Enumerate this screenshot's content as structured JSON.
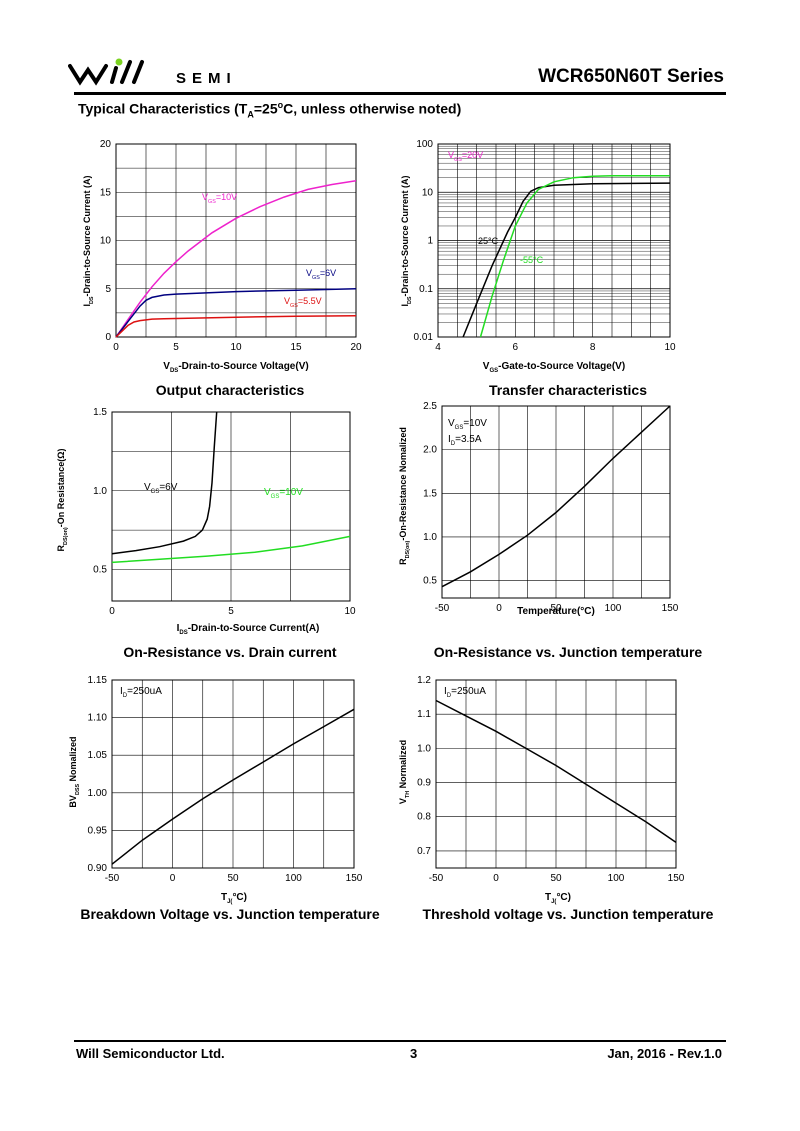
{
  "header": {
    "brand": "SEMI",
    "series_title": "WCR650N60T  Series",
    "section_title": "Typical Characteristics (T",
    "section_sub": "A",
    "section_rest": "=25",
    "section_sup": "o",
    "section_tail": "C, unless otherwise noted)"
  },
  "footer": {
    "company": "Will Semiconductor Ltd.",
    "page": "3",
    "date_rev": "Jan, 2016 - Rev.1.0"
  },
  "colors": {
    "magenta": "#ee22cc",
    "blue": "#000080",
    "red": "#dd1111",
    "green": "#22dd22",
    "black": "#000000"
  },
  "chart_data": [
    {
      "id": "output",
      "type": "line",
      "caption": "Output characteristics",
      "xlabel": "V_DS-Drain-to-Source Voltage(V)",
      "ylabel": "I_DS-Drain-to-Source Current (A)",
      "xlim": [
        0,
        20
      ],
      "ylim": [
        0,
        20
      ],
      "xticks": [
        0,
        5,
        10,
        15,
        20
      ],
      "yticks": [
        0,
        5,
        10,
        15,
        20
      ],
      "series": [
        {
          "name": "V_GS=10V",
          "color": "#ee22cc",
          "x": [
            0,
            1,
            2,
            3,
            4,
            5,
            6,
            8,
            10,
            12,
            14,
            16,
            18,
            20
          ],
          "y": [
            0,
            1.8,
            3.6,
            5.2,
            6.6,
            7.8,
            8.9,
            10.8,
            12.3,
            13.5,
            14.5,
            15.3,
            15.8,
            16.2
          ]
        },
        {
          "name": "V_GS=6V",
          "color": "#000080",
          "x": [
            0,
            1,
            2,
            2.5,
            3,
            4,
            5,
            7,
            10,
            15,
            20
          ],
          "y": [
            0,
            1.6,
            3.2,
            3.8,
            4.1,
            4.35,
            4.45,
            4.55,
            4.7,
            4.85,
            5.0
          ]
        },
        {
          "name": "V_GS=5.5V",
          "color": "#dd1111",
          "x": [
            0,
            0.5,
            1,
            1.5,
            2,
            3,
            4,
            6,
            10,
            15,
            20
          ],
          "y": [
            0,
            0.6,
            1.2,
            1.55,
            1.7,
            1.85,
            1.9,
            1.95,
            2.05,
            2.15,
            2.2
          ]
        }
      ]
    },
    {
      "id": "transfer",
      "type": "line",
      "caption": "Transfer characteristics",
      "xlabel": "V_GS-Gate-to-Source Voltage(V)",
      "ylabel": "I_DS-Drain-to-Source Current (A)",
      "xlim": [
        4,
        10
      ],
      "ylim": [
        0.01,
        100
      ],
      "yscale": "log",
      "xticks": [
        4,
        6,
        8,
        10
      ],
      "yticks": [
        0.01,
        0.1,
        1,
        10,
        100
      ],
      "annotation": "V_GS=20V",
      "series": [
        {
          "name": "25°C",
          "color": "#000000",
          "x": [
            4.65,
            5.0,
            5.4,
            5.8,
            6.0,
            6.2,
            6.4,
            6.6,
            7.0,
            8.0,
            10.0
          ],
          "y": [
            0.01,
            0.05,
            0.3,
            1.5,
            3.0,
            6.5,
            10.5,
            12.5,
            14,
            15,
            15.5
          ]
        },
        {
          "name": "-55°C",
          "color": "#22dd22",
          "x": [
            5.1,
            5.4,
            5.7,
            6.0,
            6.3,
            6.6,
            7.0,
            7.5,
            8.0,
            8.5,
            10.0
          ],
          "y": [
            0.01,
            0.07,
            0.4,
            2.0,
            6.0,
            11.5,
            16.5,
            20,
            21.5,
            22,
            22
          ]
        }
      ]
    },
    {
      "id": "ron-id",
      "type": "line",
      "caption": "On-Resistance vs. Drain current",
      "xlabel": "I_DS-Drain-to-Source Current(A)",
      "ylabel": "R_DS(on)-On Resistance(Ω)",
      "xlim": [
        0,
        10
      ],
      "ylim": [
        0.3,
        1.5
      ],
      "xticks": [
        0,
        5,
        10
      ],
      "yticks": [
        0.5,
        1.0,
        1.5
      ],
      "series": [
        {
          "name": "V_GS=6V",
          "color": "#000000",
          "x": [
            0,
            1,
            2,
            3,
            3.5,
            3.8,
            4.0,
            4.1,
            4.2,
            4.3,
            4.4
          ],
          "y": [
            0.6,
            0.62,
            0.645,
            0.68,
            0.71,
            0.75,
            0.82,
            0.9,
            1.05,
            1.28,
            1.5
          ]
        },
        {
          "name": "V_GS=10V",
          "color": "#22dd22",
          "x": [
            0,
            2,
            4,
            6,
            8,
            10
          ],
          "y": [
            0.545,
            0.565,
            0.585,
            0.61,
            0.65,
            0.71
          ]
        }
      ]
    },
    {
      "id": "ron-tj",
      "type": "line",
      "caption": "On-Resistance vs. Junction temperature",
      "xlabel": "Temperature(°C)",
      "ylabel": "R_DS(on)-On-Resistance Nomalized",
      "xlim": [
        -50,
        150
      ],
      "ylim": [
        0.3,
        2.5
      ],
      "xticks": [
        -50,
        0,
        50,
        100,
        150
      ],
      "yticks": [
        0.5,
        1.0,
        1.5,
        2.0,
        2.5
      ],
      "annotation": "V_GS=10V / I_D=3.5A",
      "series": [
        {
          "name": "R_DS(on)",
          "color": "#000000",
          "x": [
            -50,
            -25,
            0,
            25,
            50,
            75,
            100,
            125,
            150
          ],
          "y": [
            0.43,
            0.6,
            0.8,
            1.02,
            1.28,
            1.58,
            1.9,
            2.2,
            2.51
          ]
        }
      ]
    },
    {
      "id": "bvdss",
      "type": "line",
      "caption": "Breakdown Voltage vs. Junction temperature",
      "xlabel": "T_J(°C)",
      "ylabel": "BV_DSS Nomalized",
      "xlim": [
        -50,
        150
      ],
      "ylim": [
        0.9,
        1.15
      ],
      "xticks": [
        -50,
        0,
        50,
        100,
        150
      ],
      "yticks": [
        0.9,
        0.95,
        1.0,
        1.05,
        1.1,
        1.15
      ],
      "annotation": "I_D=250uA",
      "series": [
        {
          "name": "BV_DSS",
          "color": "#000000",
          "x": [
            -50,
            -25,
            0,
            25,
            50,
            75,
            100,
            125,
            150
          ],
          "y": [
            0.905,
            0.937,
            0.965,
            0.992,
            1.017,
            1.041,
            1.065,
            1.088,
            1.111
          ]
        }
      ]
    },
    {
      "id": "vth",
      "type": "line",
      "caption": "Threshold voltage vs. Junction temperature",
      "xlabel": "T_J(°C)",
      "ylabel": "V_TH Normalized",
      "xlim": [
        -50,
        150
      ],
      "ylim": [
        0.65,
        1.2
      ],
      "xticks": [
        -50,
        0,
        50,
        100,
        150
      ],
      "yticks": [
        0.7,
        0.8,
        0.9,
        1.0,
        1.1,
        1.2
      ],
      "annotation": "I_D=250uA",
      "series": [
        {
          "name": "V_TH",
          "color": "#000000",
          "x": [
            -50,
            -25,
            0,
            25,
            50,
            75,
            100,
            125,
            150
          ],
          "y": [
            1.14,
            1.095,
            1.05,
            1.0,
            0.95,
            0.895,
            0.84,
            0.785,
            0.725
          ]
        }
      ]
    }
  ]
}
